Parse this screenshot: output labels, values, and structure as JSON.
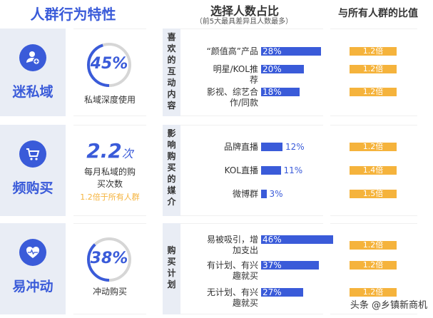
{
  "header": {
    "title": "人群行为特性",
    "col_title": "选择人数占比",
    "col_subtitle": "（前5大最具差异且人数最多）",
    "ratio_title": "与所有人群的比值"
  },
  "colors": {
    "accent": "#3a5bd9",
    "ratio": "#f5b33c",
    "panel": "#e9edf5"
  },
  "sections": [
    {
      "name": "迷私域",
      "icon": "user-plus-icon",
      "stat": "45%",
      "stat_value": 45,
      "desc": "私域深度使用",
      "category": "喜欢的互动内容",
      "items": [
        {
          "label": "“颜值高”产品",
          "value": 28,
          "pct": "28%",
          "ratio": "1.2倍"
        },
        {
          "label": "明星/KOL推荐",
          "value": 20,
          "pct": "20%",
          "ratio": "1.2倍"
        },
        {
          "label": "影视、综艺合作/同款",
          "value": 18,
          "pct": "18%",
          "ratio": "1.2倍"
        }
      ]
    },
    {
      "name": "频购买",
      "icon": "shopping-cart-icon",
      "stat": "2.2",
      "stat_unit": "次",
      "desc": "每月私域的购买次数",
      "note": "1.2倍于所有人群",
      "category": "影响购买的媒介",
      "items": [
        {
          "label": "品牌直播",
          "value": 12,
          "pct": "12%",
          "ratio": "1.2倍"
        },
        {
          "label": "KOL直播",
          "value": 11,
          "pct": "11%",
          "ratio": "1.4倍"
        },
        {
          "label": "微博群",
          "value": 3,
          "pct": "3%",
          "ratio": "1.5倍"
        }
      ]
    },
    {
      "name": "易冲动",
      "icon": "heart-pulse-icon",
      "stat": "38%",
      "stat_value": 38,
      "desc": "冲动购买",
      "category": "购买计划",
      "items": [
        {
          "label": "易被吸引，增加支出",
          "value": 46,
          "pct": "46%",
          "ratio": "1.2倍"
        },
        {
          "label": "有计划、有兴趣就买",
          "value": 37,
          "pct": "37%",
          "ratio": "1.2倍"
        },
        {
          "label": "无计划、有兴趣就买",
          "value": 27,
          "pct": "27%",
          "ratio": "1.2倍"
        }
      ]
    }
  ],
  "watermark": "头条 @乡镇新商机"
}
